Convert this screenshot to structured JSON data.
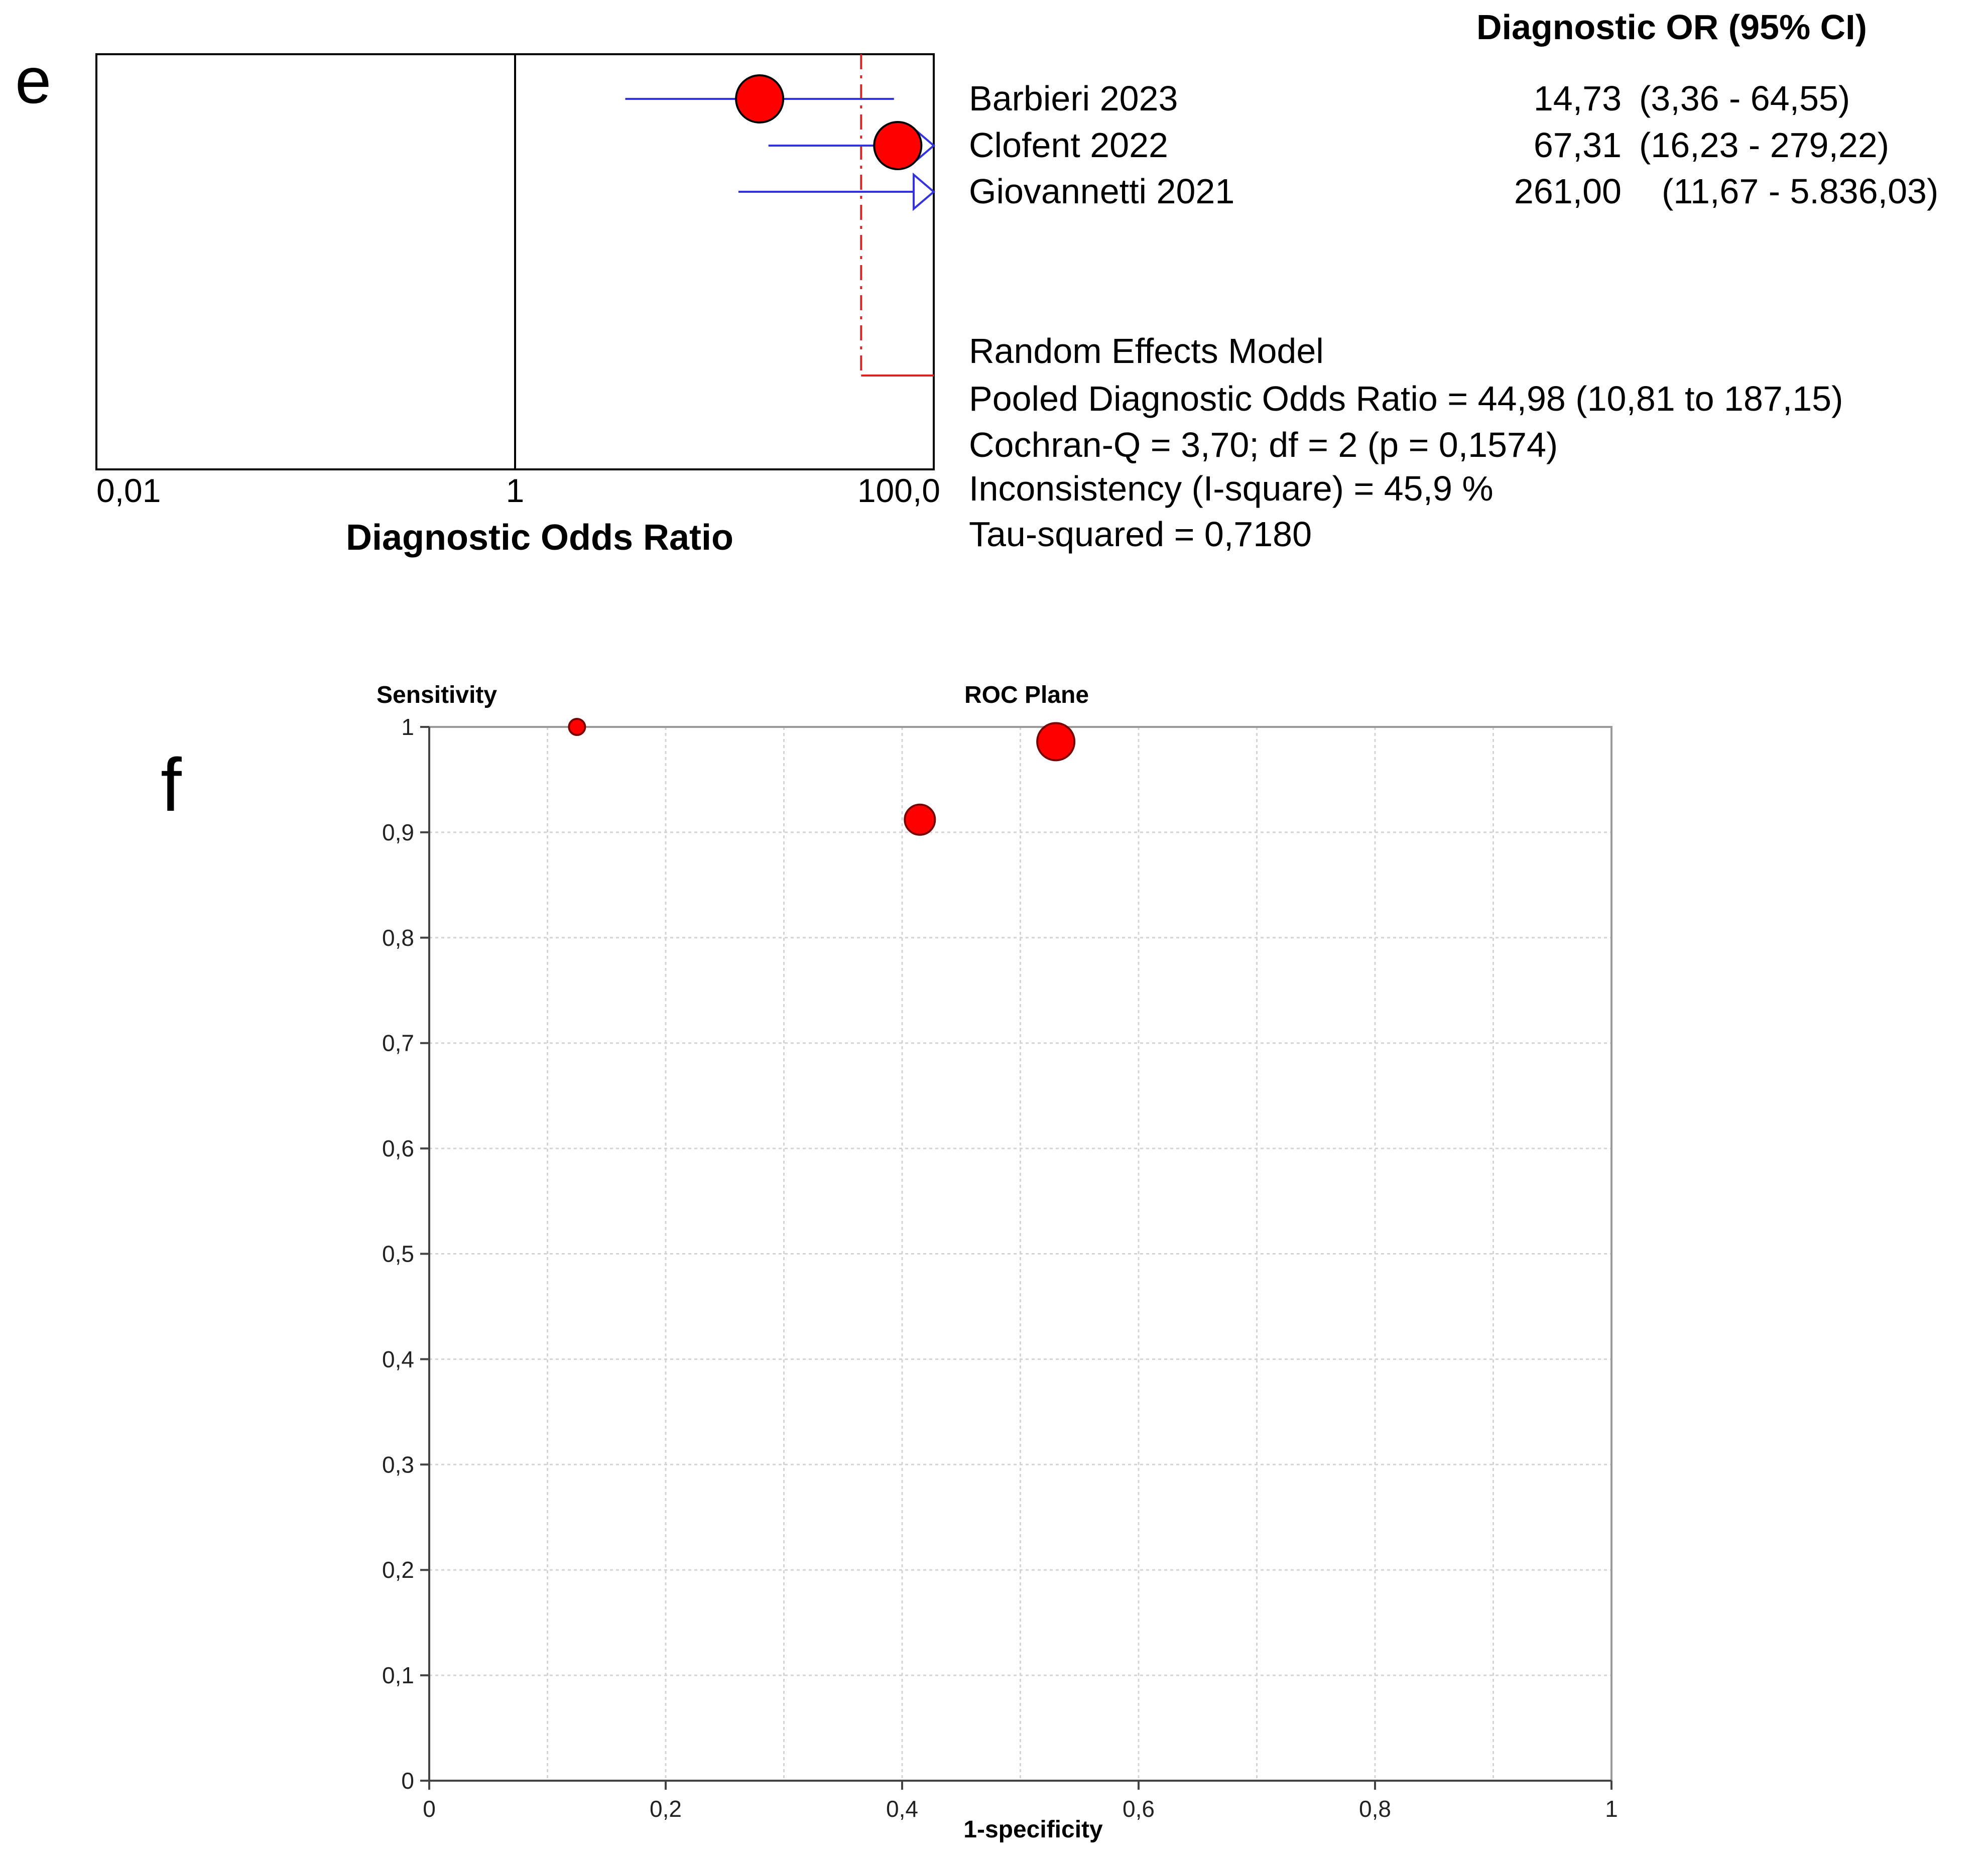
{
  "panel_e": {
    "letter": "e",
    "header": "Diagnostic OR (95% CI)",
    "xaxis_title": "Diagnostic Odds Ratio",
    "tick_labels": [
      "0,01",
      "1",
      "100,0"
    ],
    "model": {
      "title": "Random Effects Model",
      "pooled": "Pooled Diagnostic Odds Ratio = 44,98 (10,81 to 187,15)",
      "cochran": "Cochran-Q = 3,70; df =  2 (p = 0,1574)",
      "inconsistency": "Inconsistency (I-square) = 45,9 %",
      "tau": "Tau-squared = 0,7180"
    }
  },
  "panel_f": {
    "letter": "f",
    "title": "ROC Plane",
    "ylabel": "Sensitivity",
    "xlabel": "1-specificity",
    "xtick_labels": [
      "0",
      "0,2",
      "0,4",
      "0,6",
      "0,8",
      "1"
    ],
    "ytick_labels": [
      "0",
      "0,1",
      "0,2",
      "0,3",
      "0,4",
      "0,5",
      "0,6",
      "0,7",
      "0,8",
      "0,9",
      "1"
    ]
  },
  "colors": {
    "marker": "#ff0000",
    "ci_line": "#3333dd",
    "pooled_line": "#dd2222",
    "frame": "#000000",
    "grid": "#d4d4d4"
  },
  "chart_data": [
    {
      "type": "forest",
      "xscale": "log",
      "xlim": [
        0.01,
        100
      ],
      "studies": [
        {
          "label": "Barbieri 2023",
          "or_text": "14,73",
          "ci_text": "(3,36 - 64,55)",
          "or": 14.73,
          "lower": 3.36,
          "upper": 64.55,
          "weight": 1.0
        },
        {
          "label": "Clofent 2022",
          "or_text": "67,31",
          "ci_text": "(16,23 - 279,22)",
          "or": 67.31,
          "lower": 16.23,
          "upper": 279.22,
          "weight": 1.0
        },
        {
          "label": "Giovannetti 2021",
          "or_text": "261,00",
          "ci_text": "(11,67 - 5.836,03)",
          "or": 261.0,
          "lower": 11.67,
          "upper": 5836.03,
          "weight": 0.0
        }
      ],
      "pooled": {
        "or": 44.98,
        "lower": 10.81,
        "upper": 187.15
      }
    },
    {
      "type": "scatter",
      "xlim": [
        0,
        1
      ],
      "ylim": [
        0,
        1
      ],
      "grid": true,
      "points": [
        {
          "x": 0.125,
          "y": 1.0,
          "size": 1
        },
        {
          "x": 0.415,
          "y": 0.912,
          "size": 2
        },
        {
          "x": 0.53,
          "y": 0.986,
          "size": 3
        }
      ]
    }
  ]
}
